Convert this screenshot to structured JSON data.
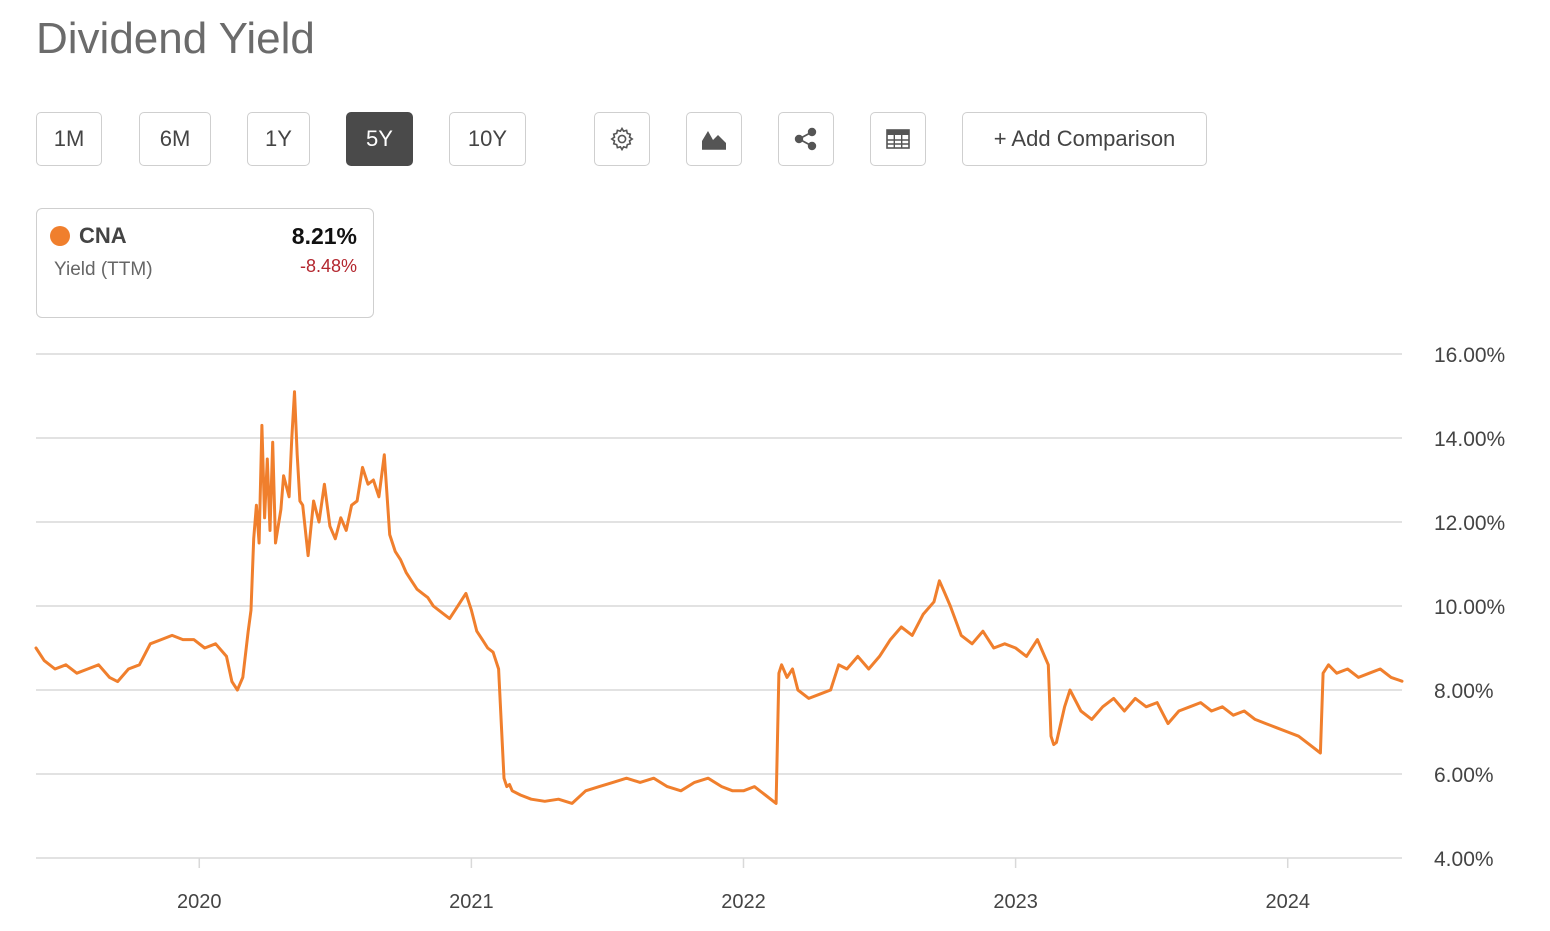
{
  "title": "Dividend Yield",
  "ranges": [
    "1M",
    "6M",
    "1Y",
    "5Y",
    "10Y"
  ],
  "active_range": "5Y",
  "toolbar": {
    "settings_icon": "gear-icon",
    "chart_type_icon": "mountain-chart-icon",
    "share_icon": "share-icon",
    "table_icon": "table-icon",
    "add_comparison_label": "+ Add Comparison"
  },
  "legend": {
    "ticker": "CNA",
    "sublabel": "Yield (TTM)",
    "value": "8.21%",
    "change": "-8.48%"
  },
  "colors": {
    "series": "#f07f2d",
    "negative": "#b3262e",
    "grid": "#d9d9d9",
    "active_button": "#4a4a4a"
  },
  "chart_data": {
    "type": "line",
    "title": "Dividend Yield",
    "xlabel": "",
    "ylabel": "",
    "xlim": [
      2019.4,
      2024.42
    ],
    "ylim": [
      4,
      16
    ],
    "yticks": [
      "4.00%",
      "6.00%",
      "8.00%",
      "10.00%",
      "12.00%",
      "14.00%",
      "16.00%"
    ],
    "xticks": [
      2020,
      2021,
      2022,
      2023,
      2024
    ],
    "xtick_labels": [
      "2020",
      "2021",
      "2022",
      "2023",
      "2024"
    ],
    "grid": true,
    "series": [
      {
        "name": "CNA",
        "x": [
          2019.4,
          2019.43,
          2019.47,
          2019.51,
          2019.55,
          2019.59,
          2019.63,
          2019.67,
          2019.7,
          2019.74,
          2019.78,
          2019.82,
          2019.86,
          2019.9,
          2019.94,
          2019.98,
          2020.02,
          2020.06,
          2020.1,
          2020.12,
          2020.14,
          2020.16,
          2020.18,
          2020.19,
          2020.2,
          2020.21,
          2020.22,
          2020.23,
          2020.24,
          2020.25,
          2020.26,
          2020.27,
          2020.28,
          2020.3,
          2020.31,
          2020.33,
          2020.34,
          2020.35,
          2020.36,
          2020.37,
          2020.38,
          2020.4,
          2020.42,
          2020.44,
          2020.46,
          2020.48,
          2020.5,
          2020.52,
          2020.54,
          2020.56,
          2020.58,
          2020.6,
          2020.62,
          2020.64,
          2020.66,
          2020.68,
          2020.7,
          2020.72,
          2020.74,
          2020.76,
          2020.78,
          2020.8,
          2020.82,
          2020.84,
          2020.86,
          2020.88,
          2020.9,
          2020.92,
          2020.94,
          2020.96,
          2020.98,
          2021.0,
          2021.02,
          2021.04,
          2021.06,
          2021.08,
          2021.1,
          2021.12,
          2021.13,
          2021.14,
          2021.15,
          2021.18,
          2021.22,
          2021.27,
          2021.32,
          2021.37,
          2021.42,
          2021.47,
          2021.52,
          2021.57,
          2021.62,
          2021.67,
          2021.72,
          2021.77,
          2021.82,
          2021.87,
          2021.92,
          2021.96,
          2022.0,
          2022.04,
          2022.08,
          2022.12,
          2022.13,
          2022.14,
          2022.16,
          2022.18,
          2022.2,
          2022.24,
          2022.28,
          2022.32,
          2022.35,
          2022.38,
          2022.42,
          2022.46,
          2022.5,
          2022.54,
          2022.58,
          2022.62,
          2022.66,
          2022.7,
          2022.72,
          2022.74,
          2022.76,
          2022.8,
          2022.84,
          2022.88,
          2022.92,
          2022.96,
          2023.0,
          2023.04,
          2023.08,
          2023.12,
          2023.13,
          2023.14,
          2023.15,
          2023.18,
          2023.2,
          2023.24,
          2023.28,
          2023.32,
          2023.36,
          2023.4,
          2023.44,
          2023.48,
          2023.52,
          2023.56,
          2023.6,
          2023.64,
          2023.68,
          2023.72,
          2023.76,
          2023.8,
          2023.84,
          2023.88,
          2023.92,
          2023.96,
          2024.0,
          2024.04,
          2024.08,
          2024.12,
          2024.13,
          2024.14,
          2024.15,
          2024.18,
          2024.22,
          2024.26,
          2024.3,
          2024.34,
          2024.38,
          2024.42
        ],
        "y": [
          9.0,
          8.7,
          8.5,
          8.6,
          8.4,
          8.5,
          8.6,
          8.3,
          8.2,
          8.5,
          8.6,
          9.1,
          9.2,
          9.3,
          9.2,
          9.2,
          9.0,
          9.1,
          8.8,
          8.2,
          8.0,
          8.3,
          9.4,
          9.9,
          11.6,
          12.4,
          11.5,
          14.3,
          12.1,
          13.5,
          11.8,
          13.9,
          11.5,
          12.3,
          13.1,
          12.6,
          14.0,
          15.1,
          13.6,
          12.5,
          12.4,
          11.2,
          12.5,
          12.0,
          12.9,
          11.9,
          11.6,
          12.1,
          11.8,
          12.4,
          12.5,
          13.3,
          12.9,
          13.0,
          12.6,
          13.6,
          11.7,
          11.3,
          11.1,
          10.8,
          10.6,
          10.4,
          10.3,
          10.2,
          10.0,
          9.9,
          9.8,
          9.7,
          9.9,
          10.1,
          10.3,
          9.9,
          9.4,
          9.2,
          9.0,
          8.9,
          8.5,
          5.9,
          5.7,
          5.75,
          5.6,
          5.5,
          5.4,
          5.35,
          5.4,
          5.3,
          5.6,
          5.7,
          5.8,
          5.9,
          5.8,
          5.9,
          5.7,
          5.6,
          5.8,
          5.9,
          5.7,
          5.6,
          5.6,
          5.7,
          5.5,
          5.3,
          8.4,
          8.6,
          8.3,
          8.5,
          8.0,
          7.8,
          7.9,
          8.0,
          8.6,
          8.5,
          8.8,
          8.5,
          8.8,
          9.2,
          9.5,
          9.3,
          9.8,
          10.1,
          10.6,
          10.3,
          10.0,
          9.3,
          9.1,
          9.4,
          9.0,
          9.1,
          9.0,
          8.8,
          9.2,
          8.6,
          6.9,
          6.7,
          6.75,
          7.6,
          8.0,
          7.5,
          7.3,
          7.6,
          7.8,
          7.5,
          7.8,
          7.6,
          7.7,
          7.2,
          7.5,
          7.6,
          7.7,
          7.5,
          7.6,
          7.4,
          7.5,
          7.3,
          7.2,
          7.1,
          7.0,
          6.9,
          6.7,
          6.5,
          8.4,
          8.5,
          8.6,
          8.4,
          8.5,
          8.3,
          8.4,
          8.5,
          8.3,
          8.21
        ]
      }
    ]
  }
}
